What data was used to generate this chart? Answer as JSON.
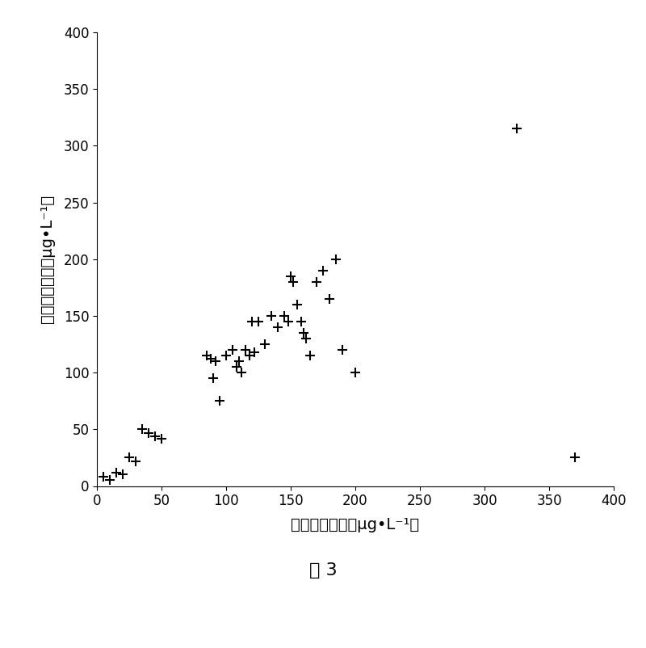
{
  "x": [
    5,
    10,
    15,
    20,
    25,
    30,
    35,
    40,
    45,
    50,
    85,
    88,
    90,
    92,
    95,
    100,
    105,
    108,
    110,
    112,
    115,
    118,
    120,
    122,
    125,
    130,
    135,
    140,
    145,
    148,
    150,
    152,
    155,
    158,
    160,
    162,
    165,
    170,
    175,
    180,
    185,
    190,
    200,
    325,
    370
  ],
  "y": [
    8,
    5,
    12,
    10,
    25,
    22,
    50,
    47,
    44,
    42,
    115,
    112,
    95,
    110,
    75,
    115,
    120,
    105,
    110,
    100,
    120,
    115,
    145,
    118,
    145,
    125,
    150,
    140,
    150,
    145,
    185,
    180,
    160,
    145,
    135,
    130,
    115,
    180,
    190,
    165,
    200,
    120,
    100,
    315,
    25
  ],
  "xlabel": "叶绻素实测值（μg•L⁻¹）",
  "ylabel": "叶绻素预测值（μg•L⁻¹）",
  "caption": "图 3",
  "xlim": [
    0,
    400
  ],
  "ylim": [
    0,
    400
  ],
  "xticks": [
    0,
    50,
    100,
    150,
    200,
    250,
    300,
    350,
    400
  ],
  "yticks": [
    0,
    50,
    100,
    150,
    200,
    250,
    300,
    350,
    400
  ],
  "marker": "+",
  "marker_size": 8,
  "marker_color": "#000000",
  "background_color": "#ffffff",
  "title_fontsize": 16,
  "label_fontsize": 14,
  "tick_fontsize": 12
}
